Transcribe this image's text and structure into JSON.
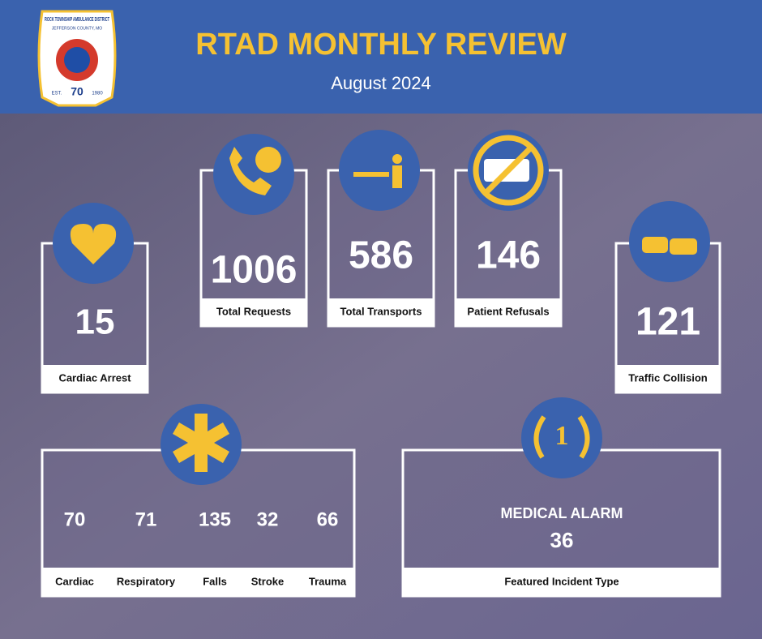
{
  "header": {
    "title": "RTAD MONTHLY REVIEW",
    "subtitle": "August 2024"
  },
  "logo": {
    "name": "ROCK TOWNSHIP AMBULANCE DISTRICT",
    "county": "JEFFERSON COUNTY, MO",
    "est": "EST.",
    "number": "70",
    "year": "1980"
  },
  "stats": [
    {
      "value": 15,
      "label": "Cardiac Arrest"
    },
    {
      "value": 1006,
      "label": "Total Requests"
    },
    {
      "value": 586,
      "label": "Total Transports"
    },
    {
      "value": 146,
      "label": "Patient Refusals"
    },
    {
      "value": 121,
      "label": "Traffic Collision"
    }
  ],
  "call_types": [
    {
      "value": 70,
      "label": "Cardiac"
    },
    {
      "value": 71,
      "label": "Respiratory"
    },
    {
      "value": 135,
      "label": "Falls"
    },
    {
      "value": 32,
      "label": "Stroke"
    },
    {
      "value": 66,
      "label": "Trauma"
    }
  ],
  "featured": {
    "type": "MEDICAL ALARM",
    "value": 36,
    "label": "Featured Incident Type",
    "rank": "1"
  }
}
